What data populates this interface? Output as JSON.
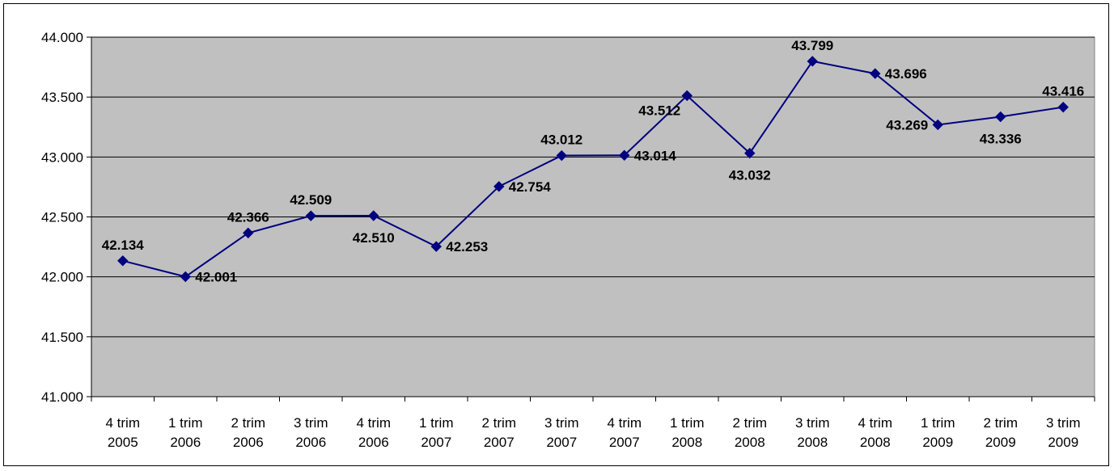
{
  "chart_data": {
    "type": "line",
    "title": "",
    "xlabel": "",
    "ylabel": "",
    "categories": [
      [
        "4 trim",
        "2005"
      ],
      [
        "1 trim",
        "2006"
      ],
      [
        "2 trim",
        "2006"
      ],
      [
        "3 trim",
        "2006"
      ],
      [
        "4 trim",
        "2006"
      ],
      [
        "1 trim",
        "2007"
      ],
      [
        "2 trim",
        "2007"
      ],
      [
        "3 trim",
        "2007"
      ],
      [
        "4 trim",
        "2007"
      ],
      [
        "1 trim",
        "2008"
      ],
      [
        "2 trim",
        "2008"
      ],
      [
        "3 trim",
        "2008"
      ],
      [
        "4 trim",
        "2008"
      ],
      [
        "1 trim",
        "2009"
      ],
      [
        "2 trim",
        "2009"
      ],
      [
        "3 trim",
        "2009"
      ]
    ],
    "series": [
      {
        "values": [
          42.134,
          42.001,
          42.366,
          42.509,
          42.51,
          42.253,
          42.754,
          43.012,
          43.014,
          43.512,
          43.032,
          43.799,
          43.696,
          43.269,
          43.336,
          43.416
        ],
        "labels": [
          "42.134",
          "42.001",
          "42.366",
          "42.509",
          "42.510",
          "42.253",
          "42.754",
          "43.012",
          "43.014",
          "43.512",
          "43.032",
          "43.799",
          "43.696",
          "43.269",
          "43.336",
          "43.416"
        ],
        "label_positions": [
          "above",
          "right",
          "above",
          "above",
          "below",
          "right",
          "right",
          "above",
          "right",
          "above-left",
          "below",
          "above",
          "right",
          "left",
          "below",
          "above"
        ],
        "color": "#000080"
      }
    ],
    "ylim": [
      41.0,
      44.0
    ],
    "yticks": [
      41.0,
      41.5,
      42.0,
      42.5,
      43.0,
      43.5,
      44.0
    ],
    "ytick_labels": [
      "41.000",
      "41.500",
      "42.000",
      "42.500",
      "43.000",
      "43.500",
      "44.000"
    ],
    "grid": true,
    "legend": "none",
    "plot_background": "#C0C0C0",
    "gridline_color": "#000000",
    "marker": "diamond"
  }
}
